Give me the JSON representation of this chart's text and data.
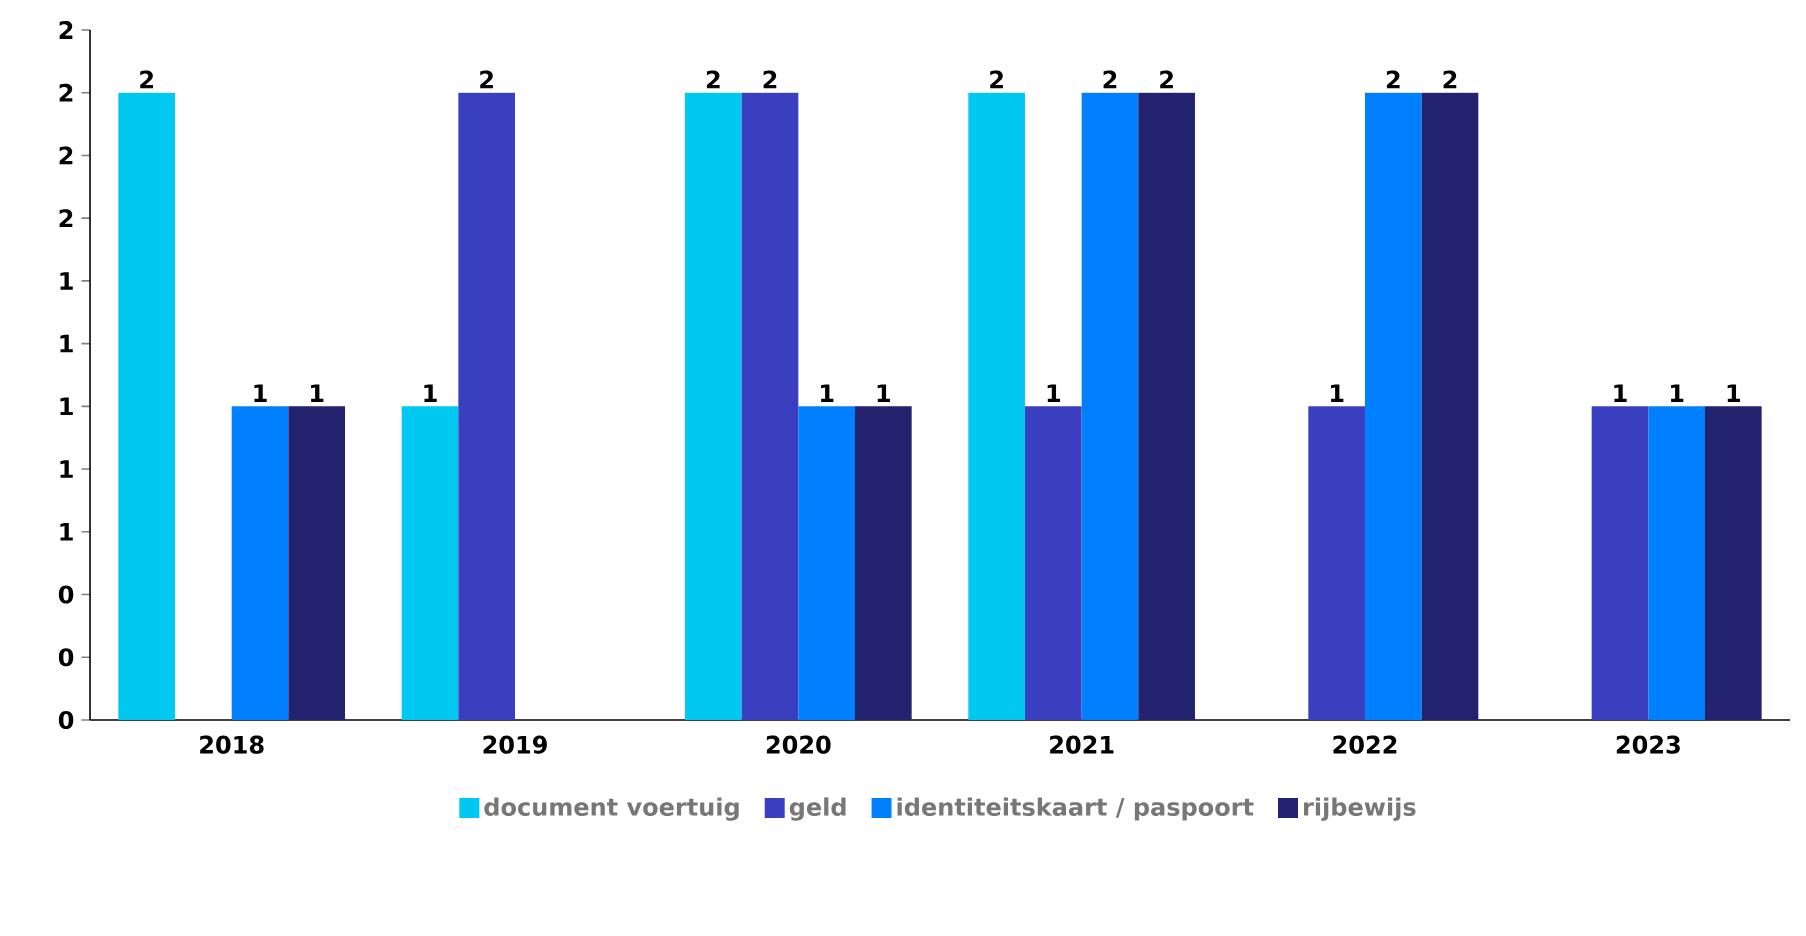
{
  "chart_data": {
    "type": "bar",
    "categories": [
      "2018",
      "2019",
      "2020",
      "2021",
      "2022",
      "2023"
    ],
    "series": [
      {
        "name": "document voertuig",
        "color": "#00c8f0",
        "values": [
          2,
          1,
          2,
          2,
          null,
          null
        ]
      },
      {
        "name": "geld",
        "color": "#3a3fbf",
        "values": [
          null,
          2,
          2,
          1,
          1,
          1
        ]
      },
      {
        "name": "identiteitskaart / paspoort",
        "color": "#0080ff",
        "values": [
          1,
          null,
          1,
          2,
          2,
          1
        ]
      },
      {
        "name": "rijbewijs",
        "color": "#22226e",
        "values": [
          1,
          null,
          1,
          2,
          2,
          1
        ]
      }
    ],
    "ylim": [
      0,
      2.2
    ],
    "yticks": [
      {
        "value": 0,
        "label": "0"
      },
      {
        "value": 0.2,
        "label": "0"
      },
      {
        "value": 0.4,
        "label": "0"
      },
      {
        "value": 0.6,
        "label": "1"
      },
      {
        "value": 0.8,
        "label": "1"
      },
      {
        "value": 1.0,
        "label": "1"
      },
      {
        "value": 1.2,
        "label": "1"
      },
      {
        "value": 1.4,
        "label": "1"
      },
      {
        "value": 1.6,
        "label": "2"
      },
      {
        "value": 1.8,
        "label": "2"
      },
      {
        "value": 2.0,
        "label": "2"
      },
      {
        "value": 2.2,
        "label": "2"
      }
    ],
    "data_labels": true,
    "legend": "bottom"
  }
}
